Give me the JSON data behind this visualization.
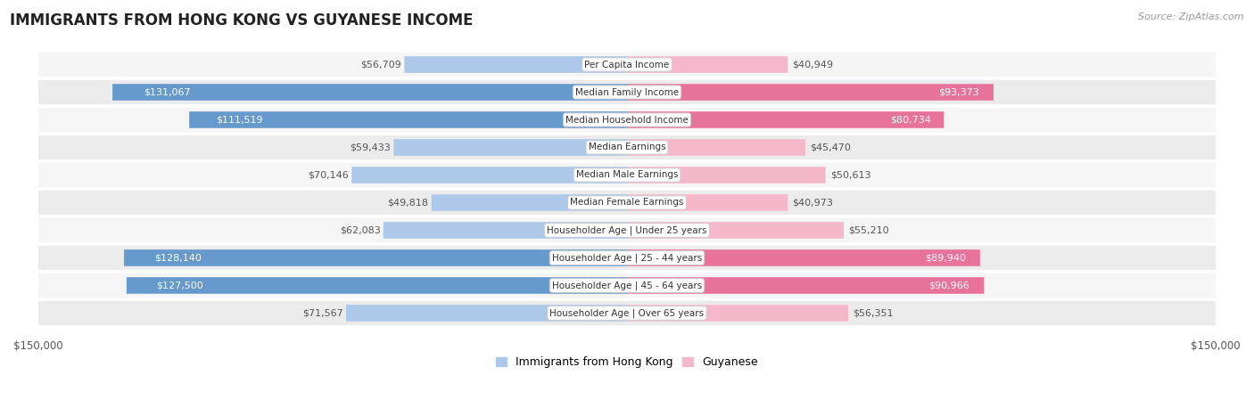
{
  "title": "IMMIGRANTS FROM HONG KONG VS GUYANESE INCOME",
  "source": "Source: ZipAtlas.com",
  "categories": [
    "Per Capita Income",
    "Median Family Income",
    "Median Household Income",
    "Median Earnings",
    "Median Male Earnings",
    "Median Female Earnings",
    "Householder Age | Under 25 years",
    "Householder Age | 25 - 44 years",
    "Householder Age | 45 - 64 years",
    "Householder Age | Over 65 years"
  ],
  "hk_values": [
    56709,
    131067,
    111519,
    59433,
    70146,
    49818,
    62083,
    128140,
    127500,
    71567
  ],
  "gy_values": [
    40949,
    93373,
    80734,
    45470,
    50613,
    40973,
    55210,
    89940,
    90966,
    56351
  ],
  "hk_labels": [
    "$56,709",
    "$131,067",
    "$111,519",
    "$59,433",
    "$70,146",
    "$49,818",
    "$62,083",
    "$128,140",
    "$127,500",
    "$71,567"
  ],
  "gy_labels": [
    "$40,949",
    "$93,373",
    "$80,734",
    "$45,470",
    "$50,613",
    "$40,973",
    "$55,210",
    "$89,940",
    "$90,966",
    "$56,351"
  ],
  "max_val": 150000,
  "hk_color_light": "#adc8e8",
  "hk_color_dark": "#6699cc",
  "gy_color_light": "#f5b8cb",
  "gy_color_dark": "#e8739a",
  "row_color_odd": "#f5f5f5",
  "row_color_even": "#ebebeb",
  "legend_hk": "Immigrants from Hong Kong",
  "legend_gy": "Guyanese",
  "hk_inside_threshold": 90000,
  "gy_inside_threshold": 75000
}
